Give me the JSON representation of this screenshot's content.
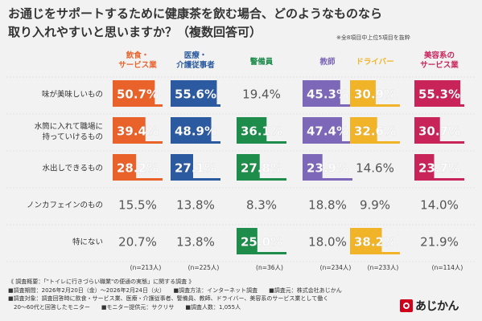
{
  "title_lines": [
    "お通じをサポートするために健康茶を飲む場合、どのようなものなら",
    "取り入れやすいと思いますか？（複数回答可）"
  ],
  "note": "※全8項目中上位5項目を抜粋",
  "chart_data": {
    "type": "table",
    "unit": "%",
    "groups": [
      {
        "name_lines": [
          "飲食・",
          "サービス業"
        ],
        "color": "#e8622a",
        "n": "(n=213人)"
      },
      {
        "name_lines": [
          "医療・",
          "介護従事者"
        ],
        "color": "#2c5aa0",
        "n": "(n=225人)"
      },
      {
        "name_lines": [
          "警備員"
        ],
        "color": "#1e8c4b",
        "n": "(n=36人)"
      },
      {
        "name_lines": [
          "教師"
        ],
        "color": "#7c67b8",
        "n": "(n=234人)"
      },
      {
        "name_lines": [
          "ドライバー"
        ],
        "color": "#f1b428",
        "n": "(n=233人)"
      },
      {
        "name_lines": [
          "美容系の",
          "サービス業"
        ],
        "color": "#c8245a",
        "n": "(n=114人)"
      }
    ],
    "rows": [
      {
        "label_lines": [
          "味が美味しいもの"
        ],
        "values": [
          50.7,
          55.6,
          19.4,
          45.3,
          30.9,
          55.3
        ],
        "labels": [
          "50.7%",
          "55.6%",
          "19.4%",
          "45.3%",
          "30.9%",
          "55.3%"
        ],
        "highlight": [
          1,
          1,
          0,
          1,
          1,
          1
        ]
      },
      {
        "label_lines": [
          "水筒に入れて職場に",
          "持っていけるもの"
        ],
        "values": [
          39.4,
          48.9,
          36.1,
          47.4,
          32.6,
          30.7
        ],
        "labels": [
          "39.4%",
          "48.9%",
          "36.1%",
          "47.4%",
          "32.6%",
          "30.7%"
        ],
        "highlight": [
          1,
          1,
          1,
          1,
          1,
          1
        ]
      },
      {
        "label_lines": [
          "水出しできるもの"
        ],
        "values": [
          28.2,
          27.1,
          27.8,
          23.9,
          14.6,
          23.7
        ],
        "labels": [
          "28.2%",
          "27.1%",
          "27.8%",
          "23.9%",
          "14.6%",
          "23.7%"
        ],
        "highlight": [
          1,
          1,
          1,
          1,
          0,
          1
        ]
      },
      {
        "label_lines": [
          "ノンカフェインのもの"
        ],
        "values": [
          15.5,
          13.8,
          8.3,
          18.8,
          9.9,
          14.0
        ],
        "labels": [
          "15.5%",
          "13.8%",
          "8.3%",
          "18.8%",
          "9.9%",
          "14.0%"
        ],
        "highlight": [
          0,
          0,
          0,
          0,
          0,
          0
        ]
      },
      {
        "label_lines": [
          "特にない"
        ],
        "values": [
          20.7,
          13.8,
          25.0,
          18.0,
          38.2,
          21.9
        ],
        "labels": [
          "20.7%",
          "13.8%",
          "25.0%",
          "18.0%",
          "38.2%",
          "21.9%"
        ],
        "highlight": [
          0,
          0,
          1,
          0,
          1,
          0
        ]
      }
    ]
  },
  "footer": [
    "《 調査概要：「\"トイレに行きづらい職業\"の便通の実態」に関する調査 》",
    "■調査期間：2026年2月20日（金）〜2026年2月24日（火）　　■調査方法：インターネット調査　　■調査元：株式会社あじかん",
    "■調査対象：調査回答時に飲食・サービス業、医療・介護従事者、警備員、教師、ドライバー、美容系のサービス業として働く",
    "　20〜60代と回答したモニター　　■モニター提供元：サクリサ　　■調査人数：1,055人"
  ],
  "logo_text": "あじかん",
  "colors": {
    "background": "#f2f2f2",
    "faded_text": "#555555",
    "grid": "#cfcfcf"
  }
}
